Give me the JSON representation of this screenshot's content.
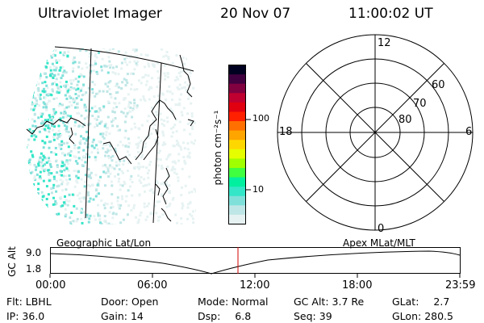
{
  "header": {
    "instrument": "Ultraviolet Imager",
    "date": "20 Nov 07",
    "time": "11:00:02 UT"
  },
  "colorbar": {
    "unit_label": "photon cm⁻²s⁻¹",
    "ticks": [
      {
        "label": "100",
        "value": 100
      },
      {
        "label": "10",
        "value": 10
      }
    ],
    "scale": "log",
    "colors": [
      "#e6f2f2",
      "#bfe6e6",
      "#7fe0da",
      "#33e6c8",
      "#00f0a0",
      "#40ff40",
      "#a0ff00",
      "#e6ff00",
      "#ffd700",
      "#ffa500",
      "#ff7000",
      "#ff2000",
      "#e00010",
      "#c00030",
      "#800040",
      "#400040",
      "#000020"
    ]
  },
  "polar_grid": {
    "lat_labels": [
      "80",
      "70",
      "60"
    ],
    "mlt_labels": {
      "top": "12",
      "bottom": "0",
      "left": "18",
      "right": "6"
    }
  },
  "timeline": {
    "y_label": "GC Alt",
    "y_ticks": [
      "9.0",
      "1.8"
    ],
    "left_caption": "Geographic Lat/Lon",
    "right_caption": "Apex MLat/MLT",
    "x_ticks": [
      "00:00",
      "06:00",
      "12:00",
      "18:00",
      "23:59"
    ],
    "marker_time": "11:00"
  },
  "info": {
    "row1": [
      {
        "label": "Flt:",
        "value": "LBHL"
      },
      {
        "label": "Door:",
        "value": "Open"
      },
      {
        "label": "Mode:",
        "value": "Normal"
      },
      {
        "label": "GC Alt:",
        "value": "3.7 Re"
      },
      {
        "label": "GLat:",
        "value": "2.7"
      }
    ],
    "row2": [
      {
        "label": "IP:",
        "value": "36.0"
      },
      {
        "label": "Gain:",
        "value": "14"
      },
      {
        "label": "Dsp:",
        "value": "6.8"
      },
      {
        "label": "Seq:",
        "value": "39"
      },
      {
        "label": "GLon:",
        "value": "280.5"
      }
    ]
  }
}
